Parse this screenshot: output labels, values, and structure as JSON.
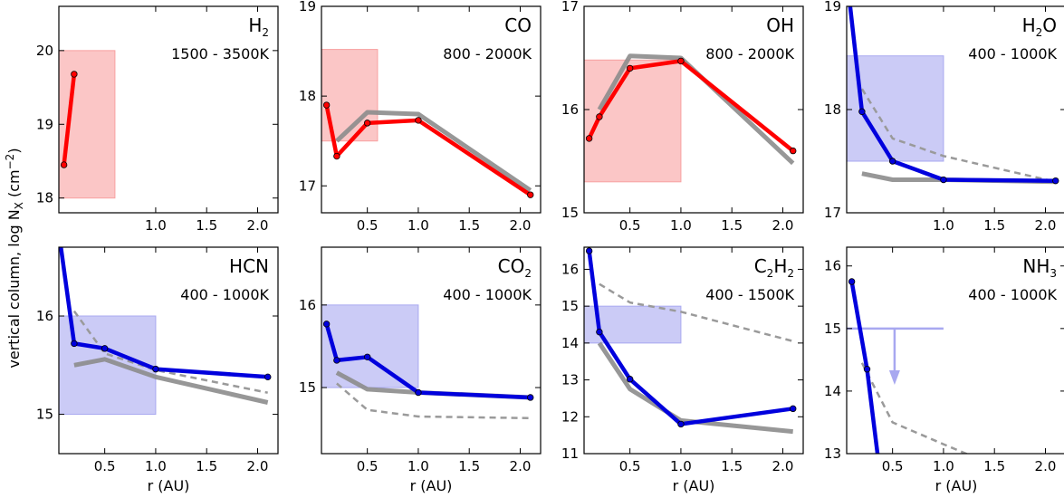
{
  "ylabel": "vertical column, log N",
  "ylabel_sub": "X",
  "ylabel_unit": " (cm",
  "ylabel_sup": "−2",
  "ylabel_close": ")",
  "colors": {
    "red": "#ff0000",
    "blue": "#0000dd",
    "gray": "#8c8c8c",
    "redbox": "#f8a0a0",
    "bluebox": "#a8a8f0",
    "dashed": "#9a9a9a"
  },
  "chart_data": [
    {
      "type": "line",
      "title": "H",
      "title_sub": "2",
      "title_post": "",
      "temp_range": "1500 - 3500K",
      "xlabel": "",
      "xlim": [
        0.05,
        2.2
      ],
      "ylim": [
        17.8,
        20.6
      ],
      "xticks": [
        "1.0",
        "1.5",
        "2.0"
      ],
      "xtick_values": [
        1.0,
        1.5,
        2.0
      ],
      "yticks": [
        "18",
        "19",
        "20"
      ],
      "ytick_values": [
        18,
        19,
        20
      ],
      "box": {
        "x": [
          0.05,
          0.6
        ],
        "y": [
          18.0,
          20.0
        ],
        "color": "red"
      },
      "series": [
        {
          "style": "model",
          "color": "red",
          "x": [
            0.1,
            0.2
          ],
          "y": [
            18.45,
            19.68
          ]
        }
      ]
    },
    {
      "type": "line",
      "title": "CO",
      "title_sub": "",
      "title_post": "",
      "temp_range": "800 - 2000K",
      "xlabel": "",
      "xlim": [
        0.05,
        2.2
      ],
      "ylim": [
        16.7,
        19.0
      ],
      "xticks": [
        "0.5",
        "1.0",
        "1.5",
        "2.0"
      ],
      "xtick_values": [
        0.5,
        1.0,
        1.5,
        2.0
      ],
      "yticks": [
        "17",
        "18",
        "19"
      ],
      "ytick_values": [
        17,
        18,
        19
      ],
      "box": {
        "x": [
          0.05,
          0.6
        ],
        "y": [
          17.5,
          18.52
        ],
        "color": "red"
      },
      "series": [
        {
          "style": "gray",
          "x": [
            0.2,
            0.5,
            1.0,
            2.1
          ],
          "y": [
            17.5,
            17.82,
            17.8,
            16.95
          ]
        },
        {
          "style": "model",
          "color": "red",
          "x": [
            0.1,
            0.2,
            0.5,
            1.0,
            2.1
          ],
          "y": [
            17.9,
            17.33,
            17.7,
            17.73,
            16.9
          ]
        }
      ]
    },
    {
      "type": "line",
      "title": "OH",
      "title_sub": "",
      "title_post": "",
      "temp_range": "800 - 2000K",
      "xlabel": "",
      "xlim": [
        0.05,
        2.2
      ],
      "ylim": [
        15.0,
        17.0
      ],
      "xticks": [
        "0.5",
        "1.0",
        "1.5",
        "2.0"
      ],
      "xtick_values": [
        0.5,
        1.0,
        1.5,
        2.0
      ],
      "yticks": [
        "15",
        "16",
        "17"
      ],
      "ytick_values": [
        15,
        16,
        17
      ],
      "box": {
        "x": [
          0.05,
          1.0
        ],
        "y": [
          15.3,
          16.48
        ],
        "color": "red"
      },
      "series": [
        {
          "style": "gray",
          "x": [
            0.2,
            0.5,
            1.0,
            2.1
          ],
          "y": [
            16.0,
            16.52,
            16.5,
            15.48
          ]
        },
        {
          "style": "model",
          "color": "red",
          "x": [
            0.1,
            0.2,
            0.5,
            1.0,
            2.1
          ],
          "y": [
            15.72,
            15.93,
            16.4,
            16.47,
            15.6
          ]
        }
      ]
    },
    {
      "type": "line",
      "title": "H",
      "title_sub": "2",
      "title_post": "O",
      "temp_range": "400 - 1000K",
      "xlabel": "",
      "xlim": [
        0.05,
        2.2
      ],
      "ylim": [
        17.0,
        19.0
      ],
      "xticks": [
        "1.0",
        "1.5",
        "2.0"
      ],
      "xtick_values": [
        1.0,
        1.5,
        2.0
      ],
      "yticks": [
        "17",
        "18",
        "19"
      ],
      "ytick_values": [
        17,
        18,
        19
      ],
      "box": {
        "x": [
          0.05,
          1.0
        ],
        "y": [
          17.5,
          18.52
        ],
        "color": "blue"
      },
      "series": [
        {
          "style": "dashed",
          "x": [
            0.2,
            0.5,
            1.0,
            2.1
          ],
          "y": [
            18.2,
            17.72,
            17.55,
            17.3
          ]
        },
        {
          "style": "gray",
          "x": [
            0.2,
            0.5,
            1.0,
            2.1
          ],
          "y": [
            17.38,
            17.32,
            17.32,
            17.3
          ]
        },
        {
          "style": "model",
          "color": "blue",
          "x": [
            0.05,
            0.2,
            0.5,
            1.0,
            2.1
          ],
          "y": [
            19.3,
            17.98,
            17.5,
            17.32,
            17.31
          ]
        }
      ]
    },
    {
      "type": "line",
      "title": "HCN",
      "title_sub": "",
      "title_post": "",
      "temp_range": "400 - 1000K",
      "xlabel": "r (AU)",
      "xlim": [
        0.05,
        2.2
      ],
      "ylim": [
        14.6,
        16.7
      ],
      "xticks": [
        "0.5",
        "1.0",
        "1.5",
        "2.0"
      ],
      "xtick_values": [
        0.5,
        1.0,
        1.5,
        2.0
      ],
      "yticks": [
        "15",
        "16"
      ],
      "ytick_values": [
        15,
        16
      ],
      "box": {
        "x": [
          0.05,
          1.0
        ],
        "y": [
          15.0,
          16.0
        ],
        "color": "blue"
      },
      "series": [
        {
          "style": "dashed",
          "x": [
            0.2,
            0.5,
            1.0,
            2.1
          ],
          "y": [
            16.05,
            15.62,
            15.45,
            15.22
          ]
        },
        {
          "style": "gray",
          "x": [
            0.2,
            0.5,
            1.0,
            2.1
          ],
          "y": [
            15.5,
            15.56,
            15.38,
            15.12
          ]
        },
        {
          "style": "model",
          "color": "blue",
          "x": [
            0.05,
            0.2,
            0.5,
            1.0,
            2.1
          ],
          "y": [
            16.85,
            15.72,
            15.67,
            15.46,
            15.38
          ]
        }
      ]
    },
    {
      "type": "line",
      "title": "CO",
      "title_sub": "2",
      "title_post": "",
      "temp_range": "400 - 1000K",
      "xlabel": "r (AU)",
      "xlim": [
        0.05,
        2.2
      ],
      "ylim": [
        14.2,
        16.7
      ],
      "xticks": [
        "0.5",
        "1.0",
        "1.5",
        "2.0"
      ],
      "xtick_values": [
        0.5,
        1.0,
        1.5,
        2.0
      ],
      "yticks": [
        "15",
        "16"
      ],
      "ytick_values": [
        15,
        16
      ],
      "box": {
        "x": [
          0.05,
          1.0
        ],
        "y": [
          15.0,
          16.0
        ],
        "color": "blue"
      },
      "series": [
        {
          "style": "dashed",
          "x": [
            0.2,
            0.5,
            1.0,
            2.1
          ],
          "y": [
            15.05,
            14.73,
            14.65,
            14.63
          ]
        },
        {
          "style": "gray",
          "x": [
            0.2,
            0.5,
            1.0,
            2.1
          ],
          "y": [
            15.18,
            14.98,
            14.94,
            14.88
          ]
        },
        {
          "style": "model",
          "color": "blue",
          "x": [
            0.1,
            0.2,
            0.5,
            1.0,
            2.1
          ],
          "y": [
            15.77,
            15.33,
            15.37,
            14.94,
            14.88
          ]
        }
      ]
    },
    {
      "type": "line",
      "title": "C",
      "title_sub": "2",
      "title_post": "H",
      "title_sub2": "2",
      "temp_range": "400 - 1500K",
      "xlabel": "r (AU)",
      "xlim": [
        0.05,
        2.2
      ],
      "ylim": [
        11.0,
        16.6
      ],
      "xticks": [
        "0.5",
        "1.0",
        "1.5",
        "2.0"
      ],
      "xtick_values": [
        0.5,
        1.0,
        1.5,
        2.0
      ],
      "yticks": [
        "11",
        "12",
        "13",
        "14",
        "15",
        "16"
      ],
      "ytick_values": [
        11,
        12,
        13,
        14,
        15,
        16
      ],
      "box": {
        "x": [
          0.05,
          1.0
        ],
        "y": [
          14.0,
          15.0
        ],
        "color": "blue"
      },
      "series": [
        {
          "style": "dashed",
          "x": [
            0.2,
            0.5,
            1.0,
            2.1
          ],
          "y": [
            15.6,
            15.1,
            14.85,
            14.05
          ]
        },
        {
          "style": "gray",
          "x": [
            0.2,
            0.5,
            1.0,
            2.1
          ],
          "y": [
            14.0,
            12.75,
            11.9,
            11.6
          ]
        },
        {
          "style": "model",
          "color": "blue",
          "x": [
            0.1,
            0.2,
            0.5,
            1.0,
            2.1
          ],
          "y": [
            16.5,
            14.3,
            13.02,
            11.8,
            12.22
          ]
        }
      ]
    },
    {
      "type": "line",
      "title": "NH",
      "title_sub": "3",
      "title_post": "",
      "temp_range": "400 - 1000K",
      "xlabel": "r (AU)",
      "xlim": [
        0.05,
        2.2
      ],
      "ylim": [
        13.0,
        16.3
      ],
      "xticks": [
        "0.5",
        "1.0",
        "1.5",
        "2.0"
      ],
      "xtick_values": [
        0.5,
        1.0,
        1.5,
        2.0
      ],
      "yticks": [
        "13",
        "14",
        "15",
        "16"
      ],
      "ytick_values": [
        13,
        14,
        15,
        16
      ],
      "upper_limit": {
        "x": [
          0.05,
          1.0
        ],
        "y": 15.0,
        "arrow_x": 0.52,
        "arrow_to": 14.1
      },
      "series": [
        {
          "style": "dashed",
          "x": [
            0.2,
            0.5,
            1.0,
            1.25
          ],
          "y": [
            14.45,
            13.5,
            13.15,
            12.98
          ]
        },
        {
          "style": "model",
          "color": "blue",
          "x": [
            0.1,
            0.25,
            0.36
          ],
          "y": [
            15.75,
            14.35,
            12.9
          ]
        }
      ]
    }
  ]
}
